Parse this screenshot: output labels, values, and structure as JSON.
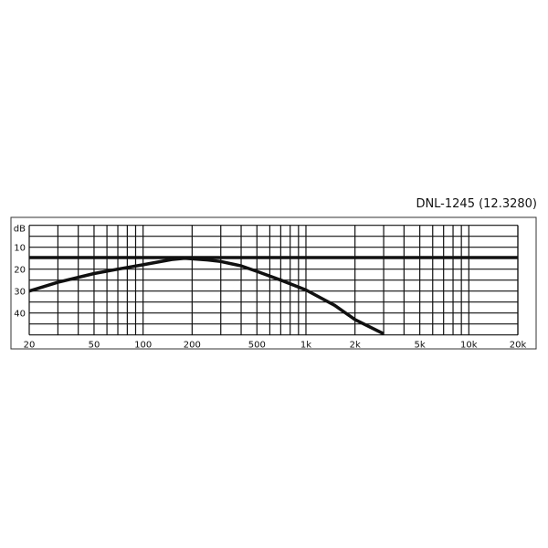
{
  "chart_data": {
    "type": "line",
    "title": "DNL-1245 (12.3280)",
    "ylabel": "dB",
    "xscale": "log",
    "xlim": [
      20,
      20000
    ],
    "ylim": [
      0,
      50
    ],
    "y_inverted": true,
    "grid": true,
    "x_tick_labels": [
      {
        "value": 20,
        "label": "20"
      },
      {
        "value": 50,
        "label": "50"
      },
      {
        "value": 100,
        "label": "100"
      },
      {
        "value": 200,
        "label": "200"
      },
      {
        "value": 500,
        "label": "500"
      },
      {
        "value": 1000,
        "label": "1k"
      },
      {
        "value": 2000,
        "label": "2k"
      },
      {
        "value": 5000,
        "label": "5k"
      },
      {
        "value": 10000,
        "label": "10k"
      },
      {
        "value": 20000,
        "label": "20k"
      }
    ],
    "y_tick_labels": [
      {
        "value": 10,
        "label": "10"
      },
      {
        "value": 20,
        "label": "20"
      },
      {
        "value": 30,
        "label": "30"
      },
      {
        "value": 40,
        "label": "40"
      }
    ],
    "series": [
      {
        "x": [
          20,
          20000
        ],
        "y": [
          14.7,
          14.7
        ]
      },
      {
        "x": [
          20,
          30,
          50,
          70,
          100,
          150,
          180,
          250,
          300,
          400,
          500,
          700,
          1000,
          1500,
          2000,
          3000
        ],
        "y": [
          30,
          26,
          22,
          20,
          18,
          15.6,
          15,
          15.8,
          16.5,
          18.5,
          21,
          25,
          29.5,
          36.5,
          43,
          49.5
        ]
      }
    ],
    "line_color": "#111111"
  }
}
